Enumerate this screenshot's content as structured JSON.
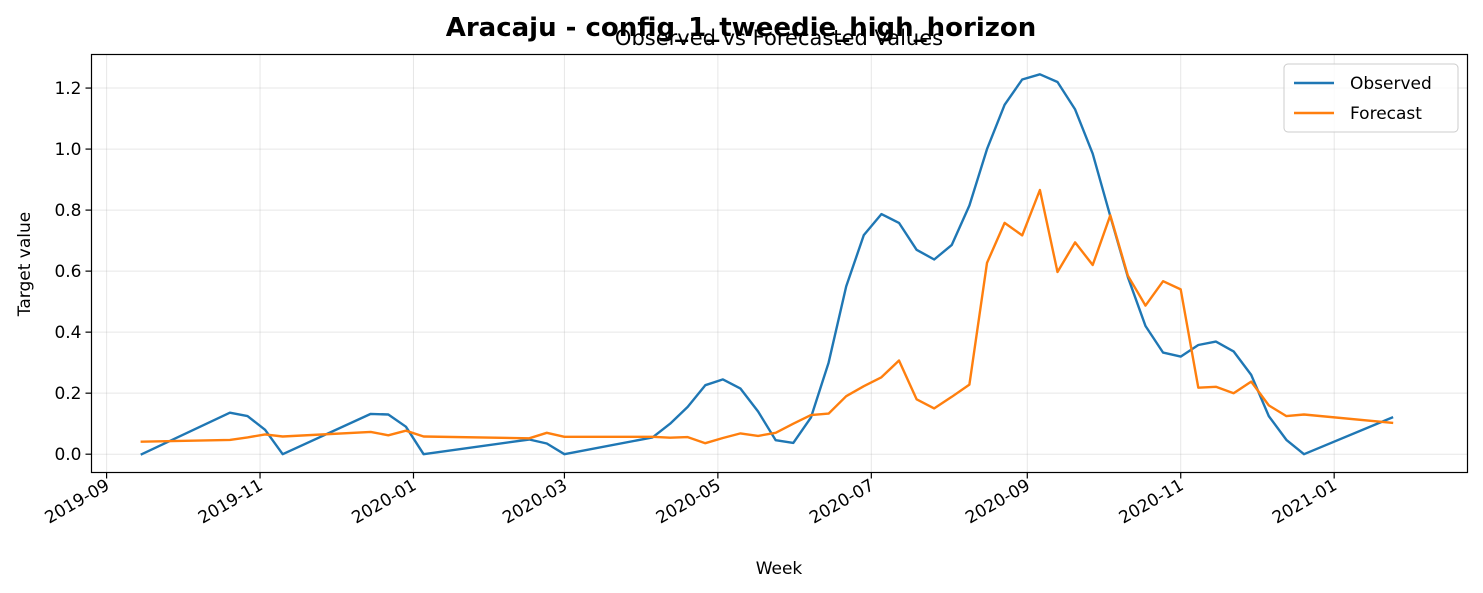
{
  "chart_data": {
    "type": "line",
    "suptitle": "Aracaju - config_1_tweedie_high_horizon",
    "title": "Observed vs Forecasted Values",
    "xlabel": "Week",
    "ylabel": "Target value",
    "xlim": [
      "2019-08-26",
      "2021-02-23"
    ],
    "ylim": [
      -0.06,
      1.31
    ],
    "x_ticks": [
      "2019-09",
      "2019-11",
      "2020-01",
      "2020-03",
      "2020-05",
      "2020-07",
      "2020-09",
      "2020-11",
      "2021-01"
    ],
    "y_ticks": [
      0.0,
      0.2,
      0.4,
      0.6,
      0.8,
      1.0,
      1.2
    ],
    "y_tick_labels": [
      "0.0",
      "0.2",
      "0.4",
      "0.6",
      "0.8",
      "1.0",
      "1.2"
    ],
    "grid": true,
    "legend_position": "upper right",
    "series": [
      {
        "name": "Observed",
        "color": "#1f77b4",
        "points": [
          [
            "2019-09-15",
            0.0
          ],
          [
            "2019-10-20",
            0.136
          ],
          [
            "2019-10-27",
            0.125
          ],
          [
            "2019-11-03",
            0.08
          ],
          [
            "2019-11-10",
            0.0
          ],
          [
            "2019-12-15",
            0.132
          ],
          [
            "2019-12-22",
            0.13
          ],
          [
            "2019-12-29",
            0.09
          ],
          [
            "2020-01-05",
            0.0
          ],
          [
            "2020-02-16",
            0.048
          ],
          [
            "2020-02-23",
            0.035
          ],
          [
            "2020-03-01",
            0.0
          ],
          [
            "2020-04-05",
            0.055
          ],
          [
            "2020-04-12",
            0.1
          ],
          [
            "2020-04-19",
            0.155
          ],
          [
            "2020-04-26",
            0.226
          ],
          [
            "2020-05-03",
            0.245
          ],
          [
            "2020-05-10",
            0.215
          ],
          [
            "2020-05-17",
            0.14
          ],
          [
            "2020-05-24",
            0.046
          ],
          [
            "2020-05-31",
            0.037
          ],
          [
            "2020-06-07",
            0.12
          ],
          [
            "2020-06-14",
            0.3
          ],
          [
            "2020-06-21",
            0.55
          ],
          [
            "2020-06-28",
            0.718
          ],
          [
            "2020-07-05",
            0.787
          ],
          [
            "2020-07-12",
            0.758
          ],
          [
            "2020-07-19",
            0.67
          ],
          [
            "2020-07-26",
            0.638
          ],
          [
            "2020-08-02",
            0.686
          ],
          [
            "2020-08-09",
            0.815
          ],
          [
            "2020-08-16",
            1.0
          ],
          [
            "2020-08-23",
            1.145
          ],
          [
            "2020-08-30",
            1.228
          ],
          [
            "2020-09-06",
            1.245
          ],
          [
            "2020-09-13",
            1.22
          ],
          [
            "2020-09-20",
            1.13
          ],
          [
            "2020-09-27",
            0.985
          ],
          [
            "2020-10-04",
            0.78
          ],
          [
            "2020-10-11",
            0.58
          ],
          [
            "2020-10-18",
            0.42
          ],
          [
            "2020-10-25",
            0.333
          ],
          [
            "2020-11-01",
            0.32
          ],
          [
            "2020-11-08",
            0.358
          ],
          [
            "2020-11-15",
            0.369
          ],
          [
            "2020-11-22",
            0.337
          ],
          [
            "2020-11-29",
            0.26
          ],
          [
            "2020-12-06",
            0.125
          ],
          [
            "2020-12-13",
            0.047
          ],
          [
            "2020-12-20",
            0.0
          ],
          [
            "2021-01-24",
            0.12
          ]
        ]
      },
      {
        "name": "Forecast",
        "color": "#ff7f0e",
        "points": [
          [
            "2019-09-15",
            0.041
          ],
          [
            "2019-10-20",
            0.047
          ],
          [
            "2019-10-27",
            0.055
          ],
          [
            "2019-11-03",
            0.065
          ],
          [
            "2019-11-10",
            0.058
          ],
          [
            "2019-12-15",
            0.073
          ],
          [
            "2019-12-22",
            0.062
          ],
          [
            "2019-12-29",
            0.077
          ],
          [
            "2020-01-05",
            0.058
          ],
          [
            "2020-02-16",
            0.052
          ],
          [
            "2020-02-23",
            0.07
          ],
          [
            "2020-03-01",
            0.057
          ],
          [
            "2020-04-05",
            0.057
          ],
          [
            "2020-04-12",
            0.054
          ],
          [
            "2020-04-19",
            0.056
          ],
          [
            "2020-04-26",
            0.036
          ],
          [
            "2020-05-03",
            0.053
          ],
          [
            "2020-05-10",
            0.068
          ],
          [
            "2020-05-17",
            0.06
          ],
          [
            "2020-05-24",
            0.07
          ],
          [
            "2020-05-31",
            0.1
          ],
          [
            "2020-06-07",
            0.128
          ],
          [
            "2020-06-14",
            0.133
          ],
          [
            "2020-06-21",
            0.19
          ],
          [
            "2020-06-28",
            0.223
          ],
          [
            "2020-07-05",
            0.252
          ],
          [
            "2020-07-12",
            0.307
          ],
          [
            "2020-07-19",
            0.18
          ],
          [
            "2020-07-26",
            0.15
          ],
          [
            "2020-08-02",
            0.188
          ],
          [
            "2020-08-09",
            0.228
          ],
          [
            "2020-08-16",
            0.627
          ],
          [
            "2020-08-23",
            0.758
          ],
          [
            "2020-08-30",
            0.717
          ],
          [
            "2020-09-06",
            0.866
          ],
          [
            "2020-09-13",
            0.597
          ],
          [
            "2020-09-20",
            0.694
          ],
          [
            "2020-09-27",
            0.62
          ],
          [
            "2020-10-04",
            0.783
          ],
          [
            "2020-10-11",
            0.585
          ],
          [
            "2020-10-18",
            0.487
          ],
          [
            "2020-10-25",
            0.567
          ],
          [
            "2020-11-01",
            0.54
          ],
          [
            "2020-11-08",
            0.218
          ],
          [
            "2020-11-15",
            0.221
          ],
          [
            "2020-11-22",
            0.2
          ],
          [
            "2020-11-29",
            0.238
          ],
          [
            "2020-12-06",
            0.16
          ],
          [
            "2020-12-13",
            0.125
          ],
          [
            "2020-12-20",
            0.13
          ],
          [
            "2021-01-24",
            0.103
          ]
        ]
      }
    ]
  }
}
